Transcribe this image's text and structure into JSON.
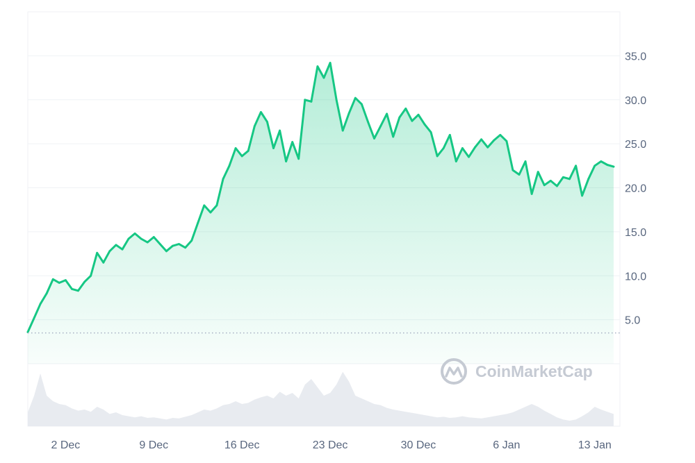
{
  "watermark": {
    "text": "CoinMarketCap",
    "icon": "coinmarketcap-logo-icon"
  },
  "colors": {
    "line": "#16c784",
    "fill_top": "#16c784",
    "grid": "#eff2f5",
    "baseline": "#a6b0c3",
    "volume": "#e8ebf0",
    "tick_text": "#58667e",
    "watermark": "#c5cad3"
  },
  "chart_data": {
    "type": "area",
    "title": "",
    "xlabel": "",
    "ylabel": "",
    "xlim": [
      "2024-11-29",
      "2025-01-15"
    ],
    "ylim": [
      0,
      40
    ],
    "y_ticks": [
      5.0,
      10.0,
      15.0,
      20.0,
      25.0,
      30.0,
      35.0
    ],
    "y_tick_labels": [
      "5.0",
      "10.0",
      "15.0",
      "20.0",
      "25.0",
      "30.0",
      "35.0"
    ],
    "x_ticks": [
      "2024-12-02",
      "2024-12-09",
      "2024-12-16",
      "2024-12-23",
      "2024-12-30",
      "2025-01-06",
      "2025-01-13"
    ],
    "x_tick_labels": [
      "2 Dec",
      "9 Dec",
      "16 Dec",
      "23 Dec",
      "30 Dec",
      "6 Jan",
      "13 Jan"
    ],
    "reference_line": {
      "y": 3.5,
      "style": "dotted"
    },
    "grid": true,
    "legend": "none",
    "series": [
      {
        "values": [
          [
            "2024-11-29",
            3.6
          ],
          [
            "2024-11-29T12",
            5.2
          ],
          [
            "2024-11-30",
            6.8
          ],
          [
            "2024-11-30T12",
            8.0
          ],
          [
            "2024-12-01",
            9.6
          ],
          [
            "2024-12-01T12",
            9.2
          ],
          [
            "2024-12-02",
            9.5
          ],
          [
            "2024-12-02T12",
            8.5
          ],
          [
            "2024-12-03",
            8.3
          ],
          [
            "2024-12-03T12",
            9.3
          ],
          [
            "2024-12-04",
            10.0
          ],
          [
            "2024-12-04T12",
            12.6
          ],
          [
            "2024-12-05",
            11.5
          ],
          [
            "2024-12-05T12",
            12.8
          ],
          [
            "2024-12-06",
            13.5
          ],
          [
            "2024-12-06T12",
            13.0
          ],
          [
            "2024-12-07",
            14.2
          ],
          [
            "2024-12-07T12",
            14.8
          ],
          [
            "2024-12-08",
            14.2
          ],
          [
            "2024-12-08T12",
            13.8
          ],
          [
            "2024-12-09",
            14.4
          ],
          [
            "2024-12-09T12",
            13.6
          ],
          [
            "2024-12-10",
            12.8
          ],
          [
            "2024-12-10T12",
            13.4
          ],
          [
            "2024-12-11",
            13.6
          ],
          [
            "2024-12-11T12",
            13.2
          ],
          [
            "2024-12-12",
            14.0
          ],
          [
            "2024-12-12T12",
            16.0
          ],
          [
            "2024-12-13",
            18.0
          ],
          [
            "2024-12-13T12",
            17.2
          ],
          [
            "2024-12-14",
            18.0
          ],
          [
            "2024-12-14T12",
            21.0
          ],
          [
            "2024-12-15",
            22.5
          ],
          [
            "2024-12-15T12",
            24.5
          ],
          [
            "2024-12-16",
            23.6
          ],
          [
            "2024-12-16T12",
            24.2
          ],
          [
            "2024-12-17",
            27.0
          ],
          [
            "2024-12-17T12",
            28.6
          ],
          [
            "2024-12-18",
            27.5
          ],
          [
            "2024-12-18T12",
            24.5
          ],
          [
            "2024-12-19",
            26.5
          ],
          [
            "2024-12-19T12",
            23.0
          ],
          [
            "2024-12-20",
            25.2
          ],
          [
            "2024-12-20T12",
            23.3
          ],
          [
            "2024-12-21",
            30.0
          ],
          [
            "2024-12-21T12",
            29.8
          ],
          [
            "2024-12-22",
            33.8
          ],
          [
            "2024-12-22T12",
            32.5
          ],
          [
            "2024-12-23",
            34.2
          ],
          [
            "2024-12-23T12",
            30.0
          ],
          [
            "2024-12-24",
            26.5
          ],
          [
            "2024-12-24T12",
            28.5
          ],
          [
            "2024-12-25",
            30.2
          ],
          [
            "2024-12-25T12",
            29.5
          ],
          [
            "2024-12-26",
            27.5
          ],
          [
            "2024-12-26T12",
            25.6
          ],
          [
            "2024-12-27",
            27.0
          ],
          [
            "2024-12-27T12",
            28.4
          ],
          [
            "2024-12-28",
            25.8
          ],
          [
            "2024-12-28T12",
            28.0
          ],
          [
            "2024-12-29",
            29.0
          ],
          [
            "2024-12-29T12",
            27.6
          ],
          [
            "2024-12-30",
            28.3
          ],
          [
            "2024-12-30T12",
            27.2
          ],
          [
            "2024-12-31",
            26.3
          ],
          [
            "2024-12-31T12",
            23.6
          ],
          [
            "2025-01-01",
            24.5
          ],
          [
            "2025-01-01T12",
            26.0
          ],
          [
            "2025-01-02",
            23.0
          ],
          [
            "2025-01-02T12",
            24.5
          ],
          [
            "2025-01-03",
            23.5
          ],
          [
            "2025-01-03T12",
            24.6
          ],
          [
            "2025-01-04",
            25.5
          ],
          [
            "2025-01-04T12",
            24.6
          ],
          [
            "2025-01-05",
            25.4
          ],
          [
            "2025-01-05T12",
            26.0
          ],
          [
            "2025-01-06",
            25.3
          ],
          [
            "2025-01-06T12",
            22.0
          ],
          [
            "2025-01-07",
            21.5
          ],
          [
            "2025-01-07T12",
            23.0
          ],
          [
            "2025-01-08",
            19.3
          ],
          [
            "2025-01-08T12",
            21.8
          ],
          [
            "2025-01-09",
            20.3
          ],
          [
            "2025-01-09T12",
            20.8
          ],
          [
            "2025-01-10",
            20.2
          ],
          [
            "2025-01-10T12",
            21.2
          ],
          [
            "2025-01-11",
            21.0
          ],
          [
            "2025-01-11T12",
            22.5
          ],
          [
            "2025-01-12",
            19.1
          ],
          [
            "2025-01-12T12",
            21.0
          ],
          [
            "2025-01-13",
            22.5
          ],
          [
            "2025-01-13T12",
            23.0
          ],
          [
            "2025-01-14",
            22.6
          ],
          [
            "2025-01-14T12",
            22.4
          ]
        ]
      }
    ],
    "volume": {
      "type": "area",
      "note_units": "relative",
      "values": [
        [
          "2024-11-29",
          0.25
        ],
        [
          "2024-11-29T12",
          0.55
        ],
        [
          "2024-11-30",
          0.95
        ],
        [
          "2024-11-30T12",
          0.55
        ],
        [
          "2024-12-01",
          0.45
        ],
        [
          "2024-12-01T12",
          0.4
        ],
        [
          "2024-12-02",
          0.38
        ],
        [
          "2024-12-02T12",
          0.32
        ],
        [
          "2024-12-03",
          0.28
        ],
        [
          "2024-12-03T12",
          0.3
        ],
        [
          "2024-12-04",
          0.26
        ],
        [
          "2024-12-04T12",
          0.35
        ],
        [
          "2024-12-05",
          0.3
        ],
        [
          "2024-12-05T12",
          0.22
        ],
        [
          "2024-12-06",
          0.25
        ],
        [
          "2024-12-06T12",
          0.2
        ],
        [
          "2024-12-07",
          0.18
        ],
        [
          "2024-12-07T12",
          0.16
        ],
        [
          "2024-12-08",
          0.18
        ],
        [
          "2024-12-08T12",
          0.15
        ],
        [
          "2024-12-09",
          0.16
        ],
        [
          "2024-12-09T12",
          0.14
        ],
        [
          "2024-12-10",
          0.12
        ],
        [
          "2024-12-10T12",
          0.15
        ],
        [
          "2024-12-11",
          0.14
        ],
        [
          "2024-12-11T12",
          0.17
        ],
        [
          "2024-12-12",
          0.2
        ],
        [
          "2024-12-12T12",
          0.25
        ],
        [
          "2024-12-13",
          0.3
        ],
        [
          "2024-12-13T12",
          0.28
        ],
        [
          "2024-12-14",
          0.32
        ],
        [
          "2024-12-14T12",
          0.38
        ],
        [
          "2024-12-15",
          0.4
        ],
        [
          "2024-12-15T12",
          0.45
        ],
        [
          "2024-12-16",
          0.4
        ],
        [
          "2024-12-16T12",
          0.42
        ],
        [
          "2024-12-17",
          0.48
        ],
        [
          "2024-12-17T12",
          0.52
        ],
        [
          "2024-12-18",
          0.55
        ],
        [
          "2024-12-18T12",
          0.5
        ],
        [
          "2024-12-19",
          0.62
        ],
        [
          "2024-12-19T12",
          0.55
        ],
        [
          "2024-12-20",
          0.6
        ],
        [
          "2024-12-20T12",
          0.5
        ],
        [
          "2024-12-21",
          0.75
        ],
        [
          "2024-12-21T12",
          0.85
        ],
        [
          "2024-12-22",
          0.7
        ],
        [
          "2024-12-22T12",
          0.55
        ],
        [
          "2024-12-23",
          0.6
        ],
        [
          "2024-12-23T12",
          0.75
        ],
        [
          "2024-12-24",
          0.98
        ],
        [
          "2024-12-24T12",
          0.8
        ],
        [
          "2024-12-25",
          0.55
        ],
        [
          "2024-12-25T12",
          0.5
        ],
        [
          "2024-12-26",
          0.45
        ],
        [
          "2024-12-26T12",
          0.4
        ],
        [
          "2024-12-27",
          0.38
        ],
        [
          "2024-12-27T12",
          0.33
        ],
        [
          "2024-12-28",
          0.3
        ],
        [
          "2024-12-28T12",
          0.28
        ],
        [
          "2024-12-29",
          0.26
        ],
        [
          "2024-12-29T12",
          0.24
        ],
        [
          "2024-12-30",
          0.22
        ],
        [
          "2024-12-30T12",
          0.2
        ],
        [
          "2024-12-31",
          0.18
        ],
        [
          "2024-12-31T12",
          0.16
        ],
        [
          "2025-01-01",
          0.17
        ],
        [
          "2025-01-01T12",
          0.15
        ],
        [
          "2025-01-02",
          0.16
        ],
        [
          "2025-01-02T12",
          0.18
        ],
        [
          "2025-01-03",
          0.16
        ],
        [
          "2025-01-03T12",
          0.15
        ],
        [
          "2025-01-04",
          0.14
        ],
        [
          "2025-01-04T12",
          0.16
        ],
        [
          "2025-01-05",
          0.18
        ],
        [
          "2025-01-05T12",
          0.2
        ],
        [
          "2025-01-06",
          0.22
        ],
        [
          "2025-01-06T12",
          0.25
        ],
        [
          "2025-01-07",
          0.3
        ],
        [
          "2025-01-07T12",
          0.35
        ],
        [
          "2025-01-08",
          0.4
        ],
        [
          "2025-01-08T12",
          0.35
        ],
        [
          "2025-01-09",
          0.28
        ],
        [
          "2025-01-09T12",
          0.22
        ],
        [
          "2025-01-10",
          0.16
        ],
        [
          "2025-01-10T12",
          0.12
        ],
        [
          "2025-01-11",
          0.1
        ],
        [
          "2025-01-11T12",
          0.12
        ],
        [
          "2025-01-12",
          0.18
        ],
        [
          "2025-01-12T12",
          0.25
        ],
        [
          "2025-01-13",
          0.35
        ],
        [
          "2025-01-13T12",
          0.3
        ],
        [
          "2025-01-14",
          0.26
        ],
        [
          "2025-01-14T12",
          0.22
        ]
      ]
    }
  }
}
